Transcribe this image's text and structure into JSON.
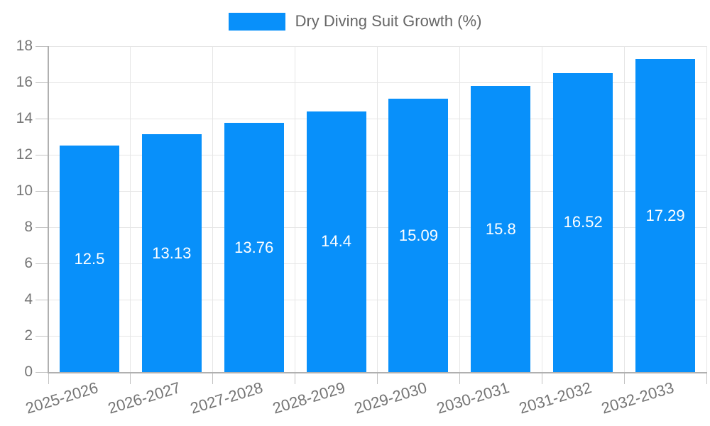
{
  "legend": {
    "label": "Dry Diving Suit Growth (%)"
  },
  "colors": {
    "bar": "#0890fa",
    "bar_value_text": "#ffffff",
    "axis_tick_text": "#757575",
    "legend_text": "#666666",
    "gridline": "#e6e6e6",
    "axis_line": "#b0b0b0",
    "tick_mark": "#c2c2c2",
    "background": "#ffffff"
  },
  "chart_data": {
    "type": "bar",
    "title": "Dry Diving Suit Growth (%)",
    "categories": [
      "2025-2026",
      "2026-2027",
      "2027-2028",
      "2028-2029",
      "2029-2030",
      "2030-2031",
      "2031-2032",
      "2032-2033"
    ],
    "values": [
      12.5,
      13.13,
      13.76,
      14.4,
      15.09,
      15.8,
      16.52,
      17.29
    ],
    "value_labels": [
      "12.5",
      "13.13",
      "13.76",
      "14.4",
      "15.09",
      "15.8",
      "16.52",
      "17.29"
    ],
    "xlabel": "",
    "ylabel": "",
    "ylim": [
      0,
      18
    ],
    "ytick_step": 2,
    "ytick_labels": [
      "0",
      "2",
      "4",
      "6",
      "8",
      "10",
      "12",
      "14",
      "16",
      "18"
    ],
    "grid": "both",
    "legend_position": "top-center",
    "value_label_position": "inside-center"
  }
}
